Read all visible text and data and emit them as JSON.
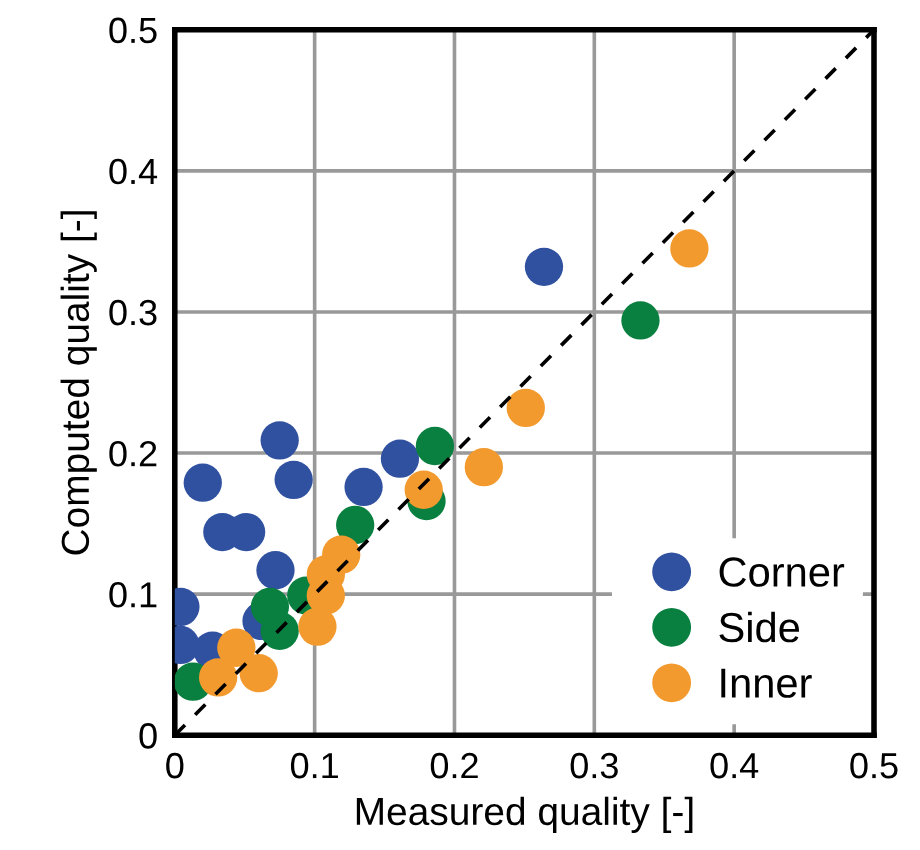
{
  "chart_data": {
    "type": "scatter",
    "xlabel": "Measured quality [-]",
    "ylabel": "Computed quality [-]",
    "xlim": [
      0,
      0.5
    ],
    "ylim": [
      0,
      0.5
    ],
    "xticks": [
      0,
      0.1,
      0.2,
      0.3,
      0.4,
      0.5
    ],
    "yticks": [
      0,
      0.1,
      0.2,
      0.3,
      0.4,
      0.5
    ],
    "grid": true,
    "legend": "bottom right",
    "marker": "circle",
    "series": [
      {
        "type": "line",
        "color": "#000000",
        "line_style": "dashed",
        "marker": "none",
        "x": [
          0,
          0.5
        ],
        "values": [
          0,
          0.5
        ]
      },
      {
        "name": "Corner",
        "color": "#3050a0",
        "x": [
          0.264,
          0.075,
          0.02,
          0.085,
          0.034,
          0.051,
          0.135,
          0.161,
          0.072,
          0.004,
          0.004,
          0.062,
          0.027
        ],
        "values": [
          0.332,
          0.209,
          0.179,
          0.181,
          0.144,
          0.144,
          0.176,
          0.196,
          0.117,
          0.091,
          0.064,
          0.081,
          0.06
        ]
      },
      {
        "name": "Side",
        "color": "#0a8040",
        "x": [
          0.333,
          0.186,
          0.18,
          0.129,
          0.068,
          0.075,
          0.094,
          0.013
        ],
        "values": [
          0.294,
          0.205,
          0.166,
          0.149,
          0.091,
          0.074,
          0.099,
          0.038
        ]
      },
      {
        "name": "Inner",
        "color": "#f39a2e",
        "x": [
          0.368,
          0.251,
          0.221,
          0.178,
          0.119,
          0.108,
          0.108,
          0.102,
          0.044,
          0.06,
          0.031
        ],
        "values": [
          0.345,
          0.232,
          0.19,
          0.174,
          0.128,
          0.114,
          0.099,
          0.077,
          0.062,
          0.044,
          0.041
        ]
      }
    ]
  }
}
